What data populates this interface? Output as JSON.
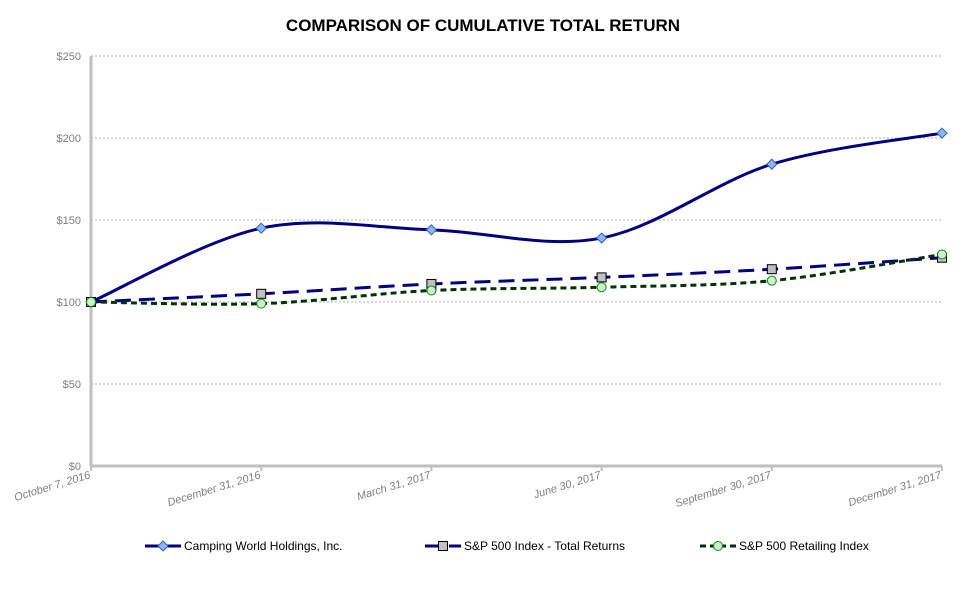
{
  "chart_data": {
    "type": "line",
    "title": "COMPARISON OF CUMULATIVE TOTAL RETURN",
    "xlabel": "",
    "ylabel": "",
    "categories": [
      "October 7, 2016",
      "December 31, 2016",
      "March 31, 2017",
      "June 30, 2017",
      "September 30, 2017",
      "December 31, 2017"
    ],
    "ylim": [
      0,
      250
    ],
    "yticks": [
      0,
      50,
      100,
      150,
      200,
      250
    ],
    "ytick_labels": [
      "$0",
      "$50",
      "$100",
      "$150",
      "$200",
      "$250"
    ],
    "grid": true,
    "legend_placement": "bottom",
    "series": [
      {
        "name": "Camping World Holdings, Inc.",
        "values": [
          100,
          145,
          144,
          139,
          184,
          203
        ],
        "color": "#000080",
        "marker": "diamond",
        "marker_fill": "#8fb4f0",
        "dash": "solid"
      },
      {
        "name": "S&P 500 Index - Total Returns",
        "values": [
          100,
          105,
          111,
          115,
          120,
          127
        ],
        "color": "#000080",
        "marker": "square",
        "marker_fill": "#c0c0c0",
        "dash": "long-dash"
      },
      {
        "name": "S&P 500 Retailing Index",
        "values": [
          100,
          99,
          107,
          109,
          113,
          129
        ],
        "color": "#003300",
        "marker": "circle",
        "marker_fill": "#c6f5c6",
        "dash": "short-dash"
      }
    ]
  }
}
